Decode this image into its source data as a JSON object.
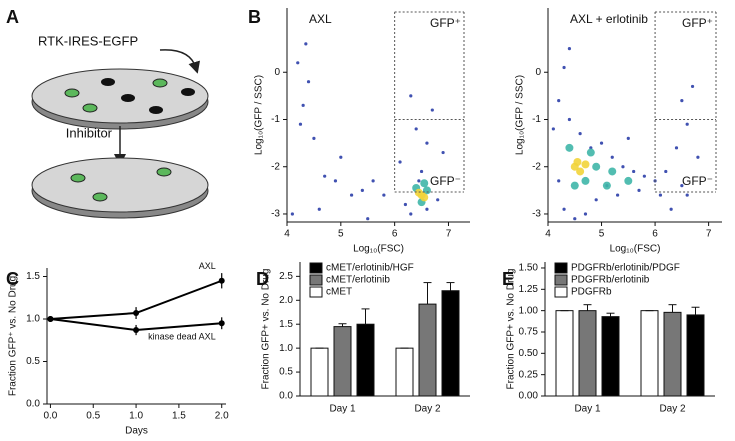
{
  "diagram": {
    "panel_label": "A",
    "label": "RTK-IRES-EGFP",
    "step": "Inhibitor"
  },
  "chart_data": [
    {
      "type": "scatter",
      "panel_label": "B",
      "title": "AXL",
      "xlabel": "Log₁₀(FSC)",
      "ylabel": "Log₁₀(GFP / SSC)",
      "xlim": [
        4,
        7.4
      ],
      "ylim": [
        -3.17,
        1.36
      ],
      "xticks": [
        4,
        5,
        6,
        7
      ],
      "yticks": [
        0,
        -1,
        -2,
        -3
      ],
      "gate": {
        "x": 6,
        "y": -1
      },
      "annotations": [
        "GFP⁺",
        "GFP⁻"
      ],
      "series": [
        {
          "color": "#2b3ea8",
          "x": [
            4.2,
            4.3,
            4.5,
            4.7,
            4.9,
            5.2,
            5.4,
            5.6,
            5.8,
            6.1,
            6.3,
            6.4,
            6.6,
            6.7,
            6.5,
            6.2,
            4.1,
            5.0,
            4.4,
            6.8,
            6.3,
            5.5,
            4.6,
            4.25,
            6.45,
            6.9,
            6.6,
            4.35
          ],
          "values": [
            0.2,
            -0.7,
            -1.4,
            -2.2,
            -2.3,
            -2.6,
            -2.5,
            -2.3,
            -2.6,
            -1.9,
            -0.5,
            -1.2,
            -1.5,
            -0.8,
            -2.1,
            -2.8,
            -3.0,
            -1.8,
            -0.2,
            -2.7,
            -3.0,
            -3.1,
            -2.9,
            -1.1,
            -2.3,
            -1.7,
            -2.9,
            0.6
          ]
        },
        {
          "color": "#3fb6a8",
          "x": [
            6.4,
            6.6,
            6.5,
            6.55
          ],
          "values": [
            -2.45,
            -2.5,
            -2.75,
            -2.35
          ]
        },
        {
          "color": "#f2d43a",
          "x": [
            6.5,
            6.45,
            6.55
          ],
          "values": [
            -2.6,
            -2.55,
            -2.65
          ]
        }
      ]
    },
    {
      "type": "scatter",
      "title": "AXL + erlotinib",
      "xlabel": "Log₁₀(FSC)",
      "ylabel": "Log₁₀(GFP / SSC)",
      "xlim": [
        4,
        7.25
      ],
      "ylim": [
        -3.17,
        1.36
      ],
      "xticks": [
        4,
        5,
        6,
        7
      ],
      "yticks": [
        0,
        -1,
        -2,
        -3
      ],
      "gate": {
        "x": 6,
        "y": -1
      },
      "annotations": [
        "GFP⁺",
        "GFP⁻"
      ],
      "series": [
        {
          "color": "#2b3ea8",
          "x": [
            4.1,
            4.2,
            4.3,
            4.4,
            4.6,
            4.8,
            5.0,
            5.2,
            5.4,
            5.6,
            5.8,
            6.0,
            6.2,
            6.4,
            6.5,
            6.6,
            6.7,
            4.3,
            4.5,
            4.9,
            5.3,
            5.7,
            6.1,
            6.3,
            4.2,
            4.7,
            5.1,
            5.5,
            6.6,
            6.8,
            4.4,
            6.5
          ],
          "values": [
            -1.2,
            -0.6,
            0.1,
            -1.0,
            -1.3,
            -1.6,
            -1.5,
            -1.8,
            -2.0,
            -2.1,
            -2.2,
            -2.3,
            -2.1,
            -1.6,
            -0.6,
            -1.1,
            -0.3,
            -2.9,
            -3.1,
            -2.7,
            -2.6,
            -2.5,
            -2.6,
            -2.9,
            -2.3,
            -3.0,
            -2.4,
            -1.4,
            -2.6,
            -1.8,
            0.5,
            -2.4
          ]
        },
        {
          "color": "#3fb6a8",
          "x": [
            4.4,
            4.7,
            4.9,
            5.2,
            5.5,
            4.5,
            4.8,
            5.1
          ],
          "values": [
            -1.6,
            -2.3,
            -2.0,
            -2.1,
            -2.3,
            -2.4,
            -1.7,
            -2.4
          ]
        },
        {
          "color": "#f2d43a",
          "x": [
            4.5,
            4.6,
            4.7,
            4.55
          ],
          "values": [
            -2.0,
            -2.1,
            -1.95,
            -1.9
          ]
        }
      ]
    },
    {
      "type": "line",
      "panel_label": "C",
      "xlabel": "Days",
      "ylabel": "Fraction GFP⁺ vs. No Drug",
      "xlim": [
        -0.04,
        2.05
      ],
      "ylim": [
        0,
        1.6
      ],
      "xticks": [
        {
          "value": 0,
          "label": "0.0"
        },
        {
          "value": 0.5,
          "label": "0.5"
        },
        {
          "value": 1,
          "label": "1.0"
        },
        {
          "value": 1.5,
          "label": "1.5"
        },
        {
          "value": 2,
          "label": "2.0"
        }
      ],
      "yticks": [
        {
          "value": 0,
          "label": "0.0"
        },
        {
          "value": 0.5,
          "label": "0.5"
        },
        {
          "value": 1,
          "label": "1.0"
        },
        {
          "value": 1.5,
          "label": "1.5"
        }
      ],
      "x": [
        0,
        1,
        2
      ],
      "series": [
        {
          "name": "AXL",
          "color": "#000000",
          "values": [
            1.0,
            1.07,
            1.45
          ],
          "errors": [
            0.02,
            0.07,
            0.09
          ]
        },
        {
          "name": "kinase dead AXL",
          "color": "#000000",
          "values": [
            1.0,
            0.87,
            0.95
          ],
          "errors": [
            0.02,
            0.06,
            0.07
          ]
        }
      ]
    },
    {
      "type": "bar",
      "panel_label": "D",
      "ylabel": "Fraction GFP+ vs. No Drug",
      "ylim": [
        0,
        2.8
      ],
      "yticks": [
        {
          "value": 0,
          "label": "0.0"
        },
        {
          "value": 0.5,
          "label": "0.5"
        },
        {
          "value": 1,
          "label": "1.0"
        },
        {
          "value": 1.5,
          "label": "1.5"
        },
        {
          "value": 2,
          "label": "2.0"
        },
        {
          "value": 2.5,
          "label": "2.5"
        }
      ],
      "categories": [
        "Day 1",
        "Day 2"
      ],
      "series": [
        {
          "name": "cMET",
          "color": "#ffffff",
          "values": [
            1.0,
            1.0
          ],
          "errors": [
            0,
            0
          ]
        },
        {
          "name": "cMET/erlotinib",
          "color": "#777777",
          "values": [
            1.45,
            1.92
          ],
          "errors": [
            0.06,
            0.45
          ]
        },
        {
          "name": "cMET/erlotinib/HGF",
          "color": "#000000",
          "values": [
            1.5,
            2.2
          ],
          "errors": [
            0.32,
            0.17
          ]
        }
      ]
    },
    {
      "type": "bar",
      "panel_label": "E",
      "ylabel": "Fraction GFP+ vs. No Drug",
      "ylim": [
        0,
        1.57
      ],
      "yticks": [
        {
          "value": 0,
          "label": "0.00"
        },
        {
          "value": 0.25,
          "label": "0.25"
        },
        {
          "value": 0.5,
          "label": "0.50"
        },
        {
          "value": 0.75,
          "label": "0.75"
        },
        {
          "value": 1,
          "label": "1.00"
        },
        {
          "value": 1.25,
          "label": "1.25"
        },
        {
          "value": 1.5,
          "label": "1.50"
        }
      ],
      "categories": [
        "Day 1",
        "Day 2"
      ],
      "series": [
        {
          "name": "PDGFRb",
          "color": "#ffffff",
          "values": [
            1.0,
            1.0
          ],
          "errors": [
            0,
            0
          ]
        },
        {
          "name": "PDGFRb/erlotinib",
          "color": "#777777",
          "values": [
            1.0,
            0.98
          ],
          "errors": [
            0.07,
            0.09
          ]
        },
        {
          "name": "PDGFRb/erlotinib/PDGF",
          "color": "#000000",
          "values": [
            0.93,
            0.95
          ],
          "errors": [
            0.04,
            0.09
          ]
        }
      ]
    }
  ]
}
